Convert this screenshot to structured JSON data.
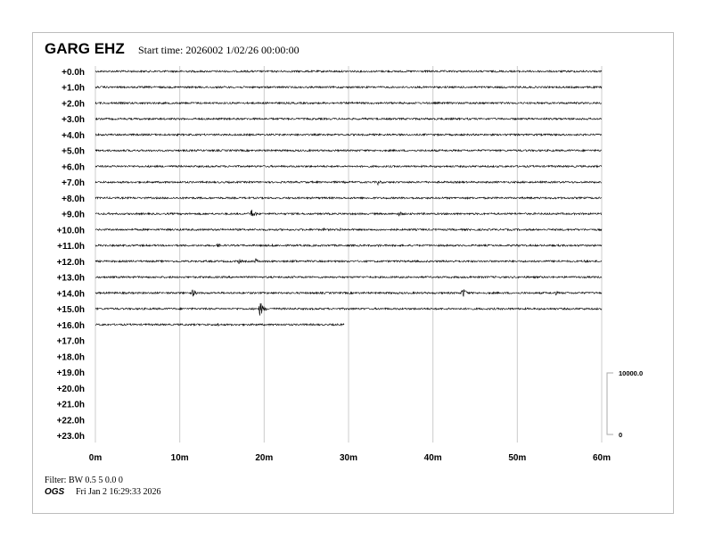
{
  "header": {
    "station": "GARG EHZ",
    "start_time": "Start time: 2026002  1/02/26 00:00:00"
  },
  "footer": {
    "filter": "Filter: BW 0.5 5 0.0 0",
    "org": "OGS",
    "timestamp": "Fri Jan  2 16:29:33 2026"
  },
  "chart_data": {
    "type": "line",
    "title": "GARG EHZ",
    "row_labels": [
      "+0.0h",
      "+1.0h",
      "+2.0h",
      "+3.0h",
      "+4.0h",
      "+5.0h",
      "+6.0h",
      "+7.0h",
      "+8.0h",
      "+9.0h",
      "+10.0h",
      "+11.0h",
      "+12.0h",
      "+13.0h",
      "+14.0h",
      "+15.0h",
      "+16.0h",
      "+17.0h",
      "+18.0h",
      "+19.0h",
      "+20.0h",
      "+21.0h",
      "+22.0h",
      "+23.0h"
    ],
    "x_ticks": [
      "0m",
      "10m",
      "20m",
      "30m",
      "40m",
      "50m",
      "60m"
    ],
    "xlim": [
      0,
      60
    ],
    "grid": true,
    "trace_color": "#000000",
    "grid_color": "#cccccc",
    "scale": {
      "top_label": "10000.0",
      "bottom_label": "0",
      "top": 10000,
      "bottom": 0
    },
    "data_end": {
      "row": 16,
      "minute": 29.5
    },
    "noise_amplitude_counts": 150,
    "events": [
      {
        "row": 7,
        "minute": 33.5,
        "amplitude": 500
      },
      {
        "row": 9,
        "minute": 18.5,
        "amplitude": 900
      },
      {
        "row": 9,
        "minute": 36,
        "amplitude": 500
      },
      {
        "row": 10,
        "minute": 27,
        "amplitude": 300
      },
      {
        "row": 10,
        "minute": 29,
        "amplitude": 350
      },
      {
        "row": 11,
        "minute": 14.5,
        "amplitude": 400
      },
      {
        "row": 11,
        "minute": 21,
        "amplitude": 300
      },
      {
        "row": 11,
        "minute": 33.5,
        "amplitude": 300
      },
      {
        "row": 11,
        "minute": 50,
        "amplitude": 300
      },
      {
        "row": 12,
        "minute": 17,
        "amplitude": 450
      },
      {
        "row": 12,
        "minute": 19,
        "amplitude": 500
      },
      {
        "row": 12,
        "minute": 23.5,
        "amplitude": 350
      },
      {
        "row": 12,
        "minute": 55,
        "amplitude": 300
      },
      {
        "row": 12,
        "minute": 58,
        "amplitude": 300
      },
      {
        "row": 13,
        "minute": 44.5,
        "amplitude": 350
      },
      {
        "row": 14,
        "minute": 11.5,
        "amplitude": 700
      },
      {
        "row": 14,
        "minute": 43.5,
        "amplitude": 1000
      },
      {
        "row": 14,
        "minute": 54.5,
        "amplitude": 400
      },
      {
        "row": 15,
        "minute": 19.5,
        "amplitude": 1300
      },
      {
        "row": 16,
        "minute": 14.5,
        "amplitude": 350
      }
    ]
  }
}
